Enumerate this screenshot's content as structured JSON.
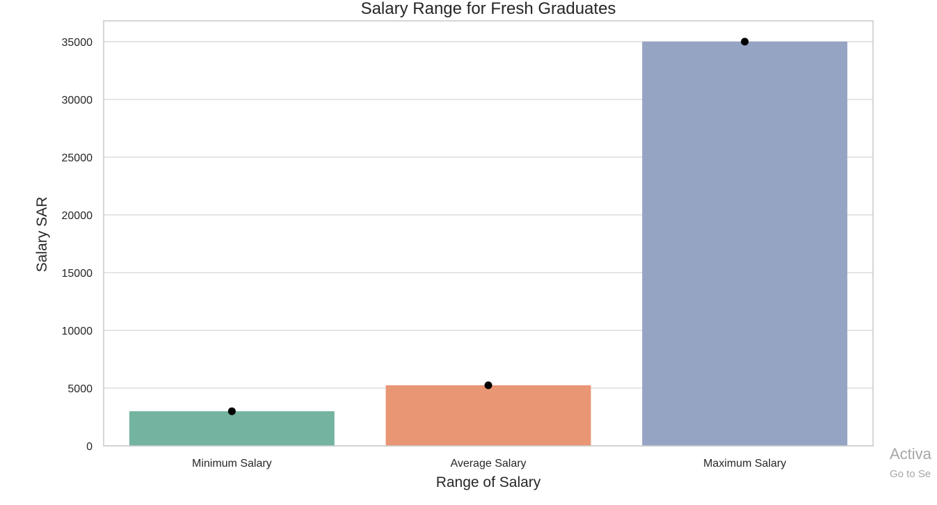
{
  "chart_data": {
    "type": "bar",
    "title": "Salary Range for Fresh Graduates",
    "xlabel": "Range of Salary",
    "ylabel": "Salary SAR",
    "categories": [
      "Minimum Salary",
      "Average Salary",
      "Maximum Salary"
    ],
    "values": [
      3000,
      5250,
      35000
    ],
    "colors": [
      "#73b3a0",
      "#e99675",
      "#95a4c2"
    ],
    "ylim": [
      0,
      36800
    ],
    "yticks": [
      0,
      5000,
      10000,
      15000,
      20000,
      25000,
      30000,
      35000
    ],
    "grid": true,
    "markers": "black-dot-at-bar-top"
  },
  "watermark": {
    "line1": "Activa",
    "line2": "Go to Se"
  }
}
